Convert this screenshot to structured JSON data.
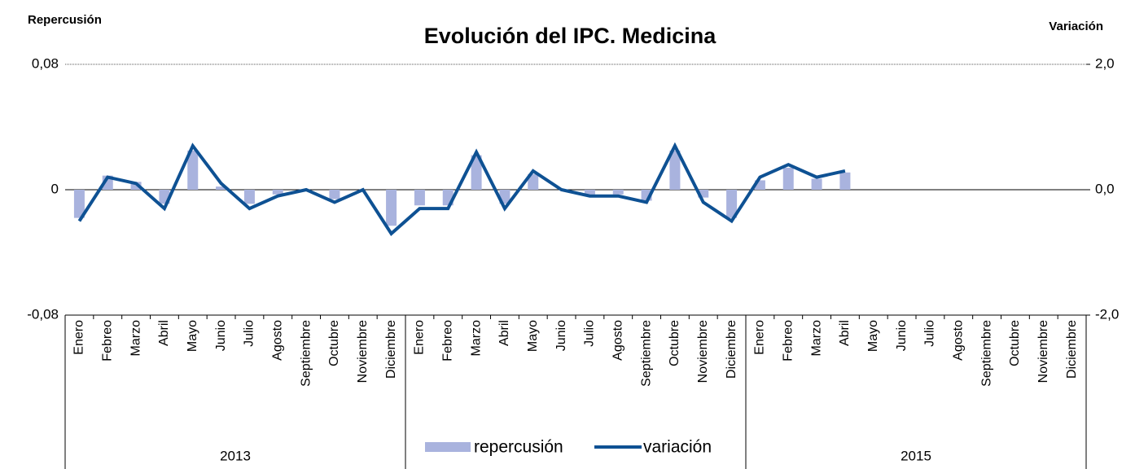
{
  "chart_data": {
    "type": "bar_line",
    "title": "Evolución del IPC. Medicina",
    "y_label": "Repercusión",
    "y2_label": "Variación",
    "categories": [
      "Enero",
      "Febreo",
      "Marzo",
      "Abril",
      "Mayo",
      "Junio",
      "Julio",
      "Agosto",
      "Septiembre",
      "Octubre",
      "Noviembre",
      "Diciembre",
      "Enero",
      "Febreo",
      "Marzo",
      "Abril",
      "Mayo",
      "Junio",
      "Julio",
      "Agosto",
      "Septiembre",
      "Octubre",
      "Noviembre",
      "Diciembre",
      "Enero",
      "Febreo",
      "Marzo",
      "Abril",
      "Mayo",
      "Junio",
      "Julio",
      "Agosto",
      "Septiembre",
      "Octubre",
      "Noviembre",
      "Diciembre"
    ],
    "groups": [
      "2013",
      null,
      "2015"
    ],
    "series": [
      {
        "name": "repercusión",
        "type": "bar",
        "color": "#a9b3de",
        "values": [
          -0.018,
          0.009,
          0.005,
          -0.009,
          0.025,
          0.002,
          -0.009,
          -0.003,
          0,
          -0.006,
          0,
          -0.023,
          -0.01,
          -0.01,
          0.022,
          -0.009,
          0.01,
          0,
          -0.003,
          -0.003,
          -0.007,
          0.025,
          -0.005,
          -0.018,
          0.006,
          0.014,
          0.007,
          0.011,
          null,
          null,
          null,
          null,
          null,
          null,
          null,
          null
        ]
      },
      {
        "name": "variación",
        "type": "line",
        "axis": "y2",
        "color": "#0e5193",
        "values": [
          -0.5,
          0.2,
          0.1,
          -0.3,
          0.7,
          0.1,
          -0.3,
          -0.1,
          0,
          -0.2,
          0,
          -0.7,
          -0.3,
          -0.3,
          0.6,
          -0.3,
          0.3,
          0,
          -0.1,
          -0.1,
          -0.2,
          0.7,
          -0.2,
          -0.5,
          0.2,
          0.4,
          0.2,
          0.3,
          null,
          null,
          null,
          null,
          null,
          null,
          null,
          null
        ]
      }
    ],
    "ylim": [
      -0.08,
      0.08
    ],
    "yticks": [
      {
        "value": -0.08,
        "label": "-0,08"
      },
      0,
      {
        "value": 0.08,
        "label": "0,08"
      }
    ],
    "y2lim": [
      -2,
      2
    ],
    "y2ticks": [
      {
        "value": -2,
        "label": "-2,0"
      },
      {
        "value": 0,
        "label": "0,0"
      },
      {
        "value": 2,
        "label": "2,0"
      }
    ]
  }
}
